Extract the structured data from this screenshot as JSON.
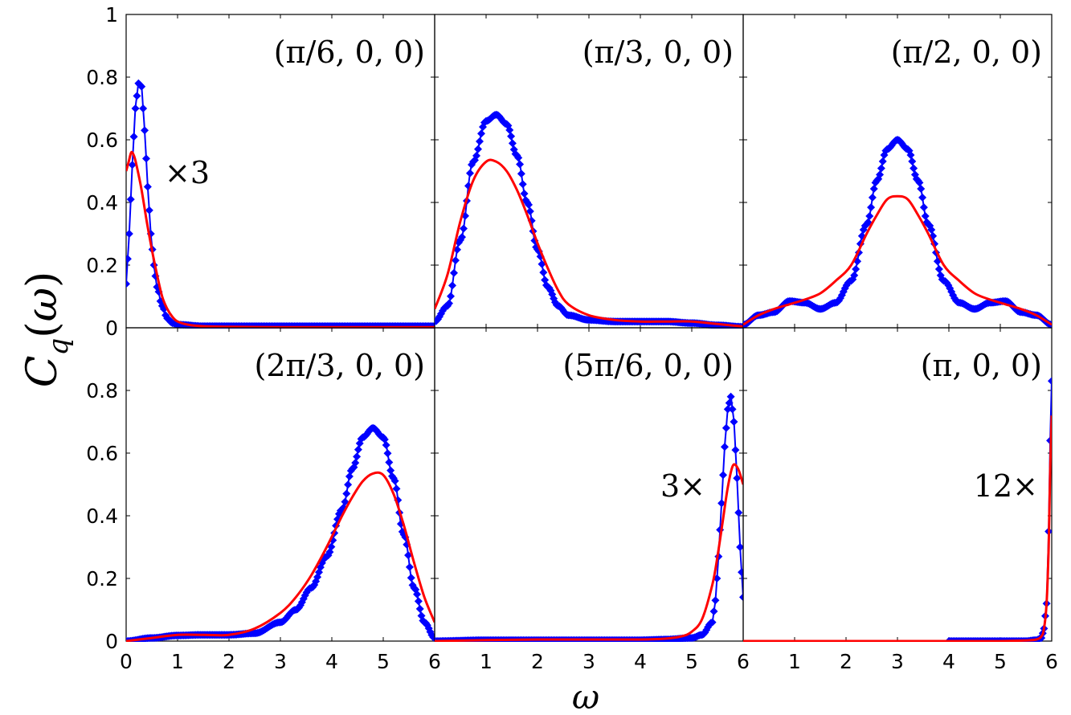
{
  "chart_data": {
    "type": "line",
    "grid": false,
    "ylabel": "C_q(ω)",
    "xlabel": "ω",
    "xlim": [
      0,
      6
    ],
    "ylim": [
      0,
      1
    ],
    "xticks": [
      "0",
      "1",
      "2",
      "3",
      "4",
      "5",
      "6"
    ],
    "yticks": [
      "0",
      "0.2",
      "0.4",
      "0.6",
      "0.8",
      "1"
    ],
    "colors": {
      "markers": "#0000ff",
      "curve": "#ff0000"
    },
    "panels": [
      {
        "label": "(π/6, 0, 0)",
        "factor": "×3",
        "series": [
          {
            "style": "blue-diamond-markers",
            "x": [
              0,
              0.06,
              0.12,
              0.18,
              0.24,
              0.3,
              0.36,
              0.42,
              0.48,
              0.54,
              0.6,
              0.7,
              0.8,
              0.9,
              1.0,
              1.5,
              2,
              3,
              4,
              5,
              6
            ],
            "y": [
              0.14,
              0.3,
              0.52,
              0.7,
              0.78,
              0.77,
              0.63,
              0.45,
              0.3,
              0.2,
              0.13,
              0.07,
              0.03,
              0.015,
              0.01,
              0.005,
              0.005,
              0.005,
              0.005,
              0.005,
              0.005
            ]
          },
          {
            "style": "red-line",
            "x": [
              0,
              0.05,
              0.1,
              0.15,
              0.2,
              0.3,
              0.4,
              0.5,
              0.6,
              0.7,
              0.8,
              0.9,
              1.0,
              1.2,
              1.5,
              2,
              3,
              4,
              5,
              6
            ],
            "y": [
              0.5,
              0.53,
              0.56,
              0.55,
              0.52,
              0.44,
              0.34,
              0.25,
              0.17,
              0.1,
              0.06,
              0.035,
              0.02,
              0.01,
              0.005,
              0.003,
              0.002,
              0.002,
              0.002,
              0.002
            ]
          }
        ]
      },
      {
        "label": "(π/3, 0, 0)",
        "factor": "",
        "series": [
          {
            "style": "blue-diamond-markers",
            "x": [
              0,
              0.25,
              0.5,
              0.75,
              1.0,
              1.2,
              1.4,
              1.6,
              1.8,
              2.0,
              2.2,
              2.4,
              2.6,
              3.0,
              3.5,
              4.0,
              4.5,
              5.0,
              5.5,
              6.0
            ],
            "y": [
              0.02,
              0.07,
              0.28,
              0.53,
              0.66,
              0.68,
              0.65,
              0.55,
              0.4,
              0.25,
              0.13,
              0.07,
              0.04,
              0.025,
              0.02,
              0.02,
              0.02,
              0.015,
              0.008,
              0.003
            ]
          },
          {
            "style": "red-line",
            "x": [
              0,
              0.25,
              0.5,
              0.75,
              1.0,
              1.2,
              1.4,
              1.6,
              1.8,
              2.0,
              2.2,
              2.4,
              2.6,
              3.0,
              3.5,
              4.0,
              4.5,
              5.0,
              5.5,
              6.0
            ],
            "y": [
              0.06,
              0.17,
              0.34,
              0.47,
              0.53,
              0.53,
              0.5,
              0.44,
              0.36,
              0.27,
              0.19,
              0.12,
              0.075,
              0.04,
              0.025,
              0.02,
              0.02,
              0.02,
              0.012,
              0.004
            ]
          }
        ]
      },
      {
        "label": "(π/2, 0, 0)",
        "factor": "",
        "series": [
          {
            "style": "blue-diamond-markers",
            "x": [
              0,
              0.3,
              0.6,
              0.9,
              1.2,
              1.5,
              1.8,
              2.1,
              2.4,
              2.6,
              2.8,
              3.0,
              3.2,
              3.4,
              3.6,
              3.9,
              4.2,
              4.5,
              4.8,
              5.1,
              5.4,
              5.7,
              6.0
            ],
            "y": [
              0.01,
              0.04,
              0.05,
              0.085,
              0.08,
              0.06,
              0.08,
              0.15,
              0.33,
              0.47,
              0.57,
              0.6,
              0.57,
              0.47,
              0.33,
              0.15,
              0.08,
              0.06,
              0.08,
              0.085,
              0.05,
              0.04,
              0.01
            ]
          },
          {
            "style": "red-line",
            "x": [
              0,
              0.3,
              0.6,
              0.9,
              1.2,
              1.5,
              1.8,
              2.1,
              2.4,
              2.6,
              2.8,
              3.0,
              3.2,
              3.4,
              3.6,
              3.9,
              4.2,
              4.5,
              4.8,
              5.1,
              5.4,
              5.7,
              6.0
            ],
            "y": [
              0.01,
              0.04,
              0.06,
              0.075,
              0.09,
              0.11,
              0.15,
              0.2,
              0.3,
              0.36,
              0.41,
              0.42,
              0.41,
              0.36,
              0.3,
              0.2,
              0.15,
              0.11,
              0.09,
              0.075,
              0.06,
              0.04,
              0.01
            ]
          }
        ]
      },
      {
        "label": "(2π/3, 0, 0)",
        "factor": "",
        "series": [
          {
            "style": "blue-diamond-markers",
            "x": [
              0,
              0.5,
              1.0,
              1.5,
              2.0,
              2.5,
              3.0,
              3.3,
              3.6,
              3.9,
              4.2,
              4.4,
              4.6,
              4.8,
              5.0,
              5.2,
              5.4,
              5.6,
              5.8,
              6.0
            ],
            "y": [
              0,
              0.01,
              0.018,
              0.02,
              0.02,
              0.025,
              0.06,
              0.1,
              0.17,
              0.27,
              0.42,
              0.55,
              0.65,
              0.68,
              0.65,
              0.52,
              0.34,
              0.17,
              0.06,
              0.01
            ]
          },
          {
            "style": "red-line",
            "x": [
              0,
              0.5,
              1.0,
              1.5,
              2.0,
              2.5,
              3.0,
              3.3,
              3.6,
              3.9,
              4.2,
              4.4,
              4.6,
              4.8,
              5.0,
              5.2,
              5.4,
              5.6,
              5.8,
              6.0
            ],
            "y": [
              0,
              0.01,
              0.02,
              0.02,
              0.02,
              0.04,
              0.09,
              0.14,
              0.21,
              0.3,
              0.4,
              0.46,
              0.51,
              0.535,
              0.53,
              0.47,
              0.37,
              0.25,
              0.14,
              0.06
            ]
          }
        ]
      },
      {
        "label": "(5π/6, 0, 0)",
        "factor": "3×",
        "series": [
          {
            "style": "blue-diamond-markers",
            "x": [
              0,
              1,
              2,
              3,
              4,
              4.5,
              5.0,
              5.2,
              5.4,
              5.46,
              5.52,
              5.58,
              5.64,
              5.7,
              5.76,
              5.82,
              5.88,
              5.94,
              6.0
            ],
            "y": [
              0,
              0.003,
              0.003,
              0.003,
              0.003,
              0.005,
              0.01,
              0.02,
              0.06,
              0.13,
              0.27,
              0.44,
              0.62,
              0.74,
              0.78,
              0.7,
              0.52,
              0.3,
              0.14
            ]
          },
          {
            "style": "red-line",
            "x": [
              0,
              1,
              2,
              3,
              4,
              4.5,
              4.8,
              5.0,
              5.2,
              5.4,
              5.5,
              5.6,
              5.7,
              5.8,
              5.9,
              6.0
            ],
            "y": [
              0,
              0.003,
              0.005,
              0.005,
              0.005,
              0.008,
              0.015,
              0.03,
              0.07,
              0.18,
              0.27,
              0.38,
              0.49,
              0.56,
              0.55,
              0.5
            ]
          }
        ]
      },
      {
        "label": "(π, 0, 0)",
        "factor": "12×",
        "series": [
          {
            "style": "blue-diamond-markers",
            "x": [
              4.0,
              4.5,
              5.0,
              5.5,
              5.7,
              5.8,
              5.85,
              5.9,
              5.94,
              5.97,
              6.0
            ],
            "y": [
              0,
              0,
              0,
              0,
              0.003,
              0.01,
              0.04,
              0.12,
              0.35,
              0.64,
              0.83
            ]
          },
          {
            "style": "red-line",
            "x": [
              0,
              1,
              2,
              3,
              4,
              5,
              5.5,
              5.7,
              5.8,
              5.85,
              5.9,
              5.94,
              5.97,
              6.0
            ],
            "y": [
              0,
              0,
              0,
              0,
              0,
              0,
              0.002,
              0.005,
              0.015,
              0.04,
              0.12,
              0.3,
              0.55,
              0.72
            ]
          }
        ]
      }
    ]
  }
}
